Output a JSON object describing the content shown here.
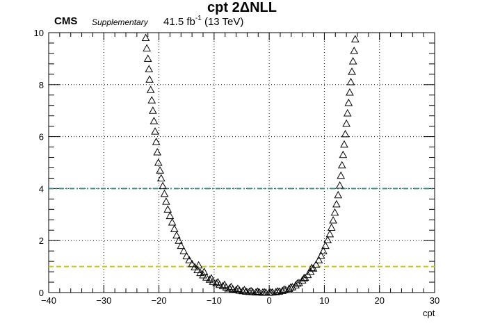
{
  "header": {
    "experiment": "CMS",
    "status": "Supplementary",
    "lumi_value": "41.5 fb",
    "lumi_exponent": "-1",
    "energy": "(13 TeV)"
  },
  "chart_data": {
    "type": "scatter",
    "title": "cpt 2ΔNLL",
    "xlabel": "cpt",
    "ylabel": "",
    "xlim": [
      -40,
      30
    ],
    "ylim": [
      0,
      10
    ],
    "xticks": [
      -40,
      -30,
      -20,
      -10,
      0,
      10,
      20,
      30
    ],
    "yticks": [
      0,
      2,
      4,
      6,
      8,
      10
    ],
    "grid": true,
    "marker": "open-triangle",
    "reference_lines": [
      {
        "y": 4,
        "color": "#2e8b8b",
        "style": "dash-dot"
      },
      {
        "y": 1,
        "color": "#cccc00",
        "style": "dashed"
      }
    ],
    "series": [
      {
        "points": [
          [
            -22.4,
            9.8
          ],
          [
            -22.2,
            9.4
          ],
          [
            -22.0,
            9.0
          ],
          [
            -21.8,
            8.6
          ],
          [
            -21.7,
            8.2
          ],
          [
            -21.5,
            7.8
          ],
          [
            -21.3,
            7.4
          ],
          [
            -21.1,
            7.0
          ],
          [
            -20.9,
            6.6
          ],
          [
            -20.7,
            6.2
          ],
          [
            -20.5,
            5.8
          ],
          [
            -20.3,
            5.4
          ],
          [
            -20.1,
            5.0
          ],
          [
            -19.8,
            4.7
          ],
          [
            -19.6,
            4.4
          ],
          [
            -19.3,
            4.1
          ],
          [
            -19.0,
            3.8
          ],
          [
            -18.7,
            3.5
          ],
          [
            -18.4,
            3.2
          ],
          [
            -18.0,
            2.95
          ],
          [
            -17.6,
            2.7
          ],
          [
            -17.2,
            2.45
          ],
          [
            -16.8,
            2.2
          ],
          [
            -16.4,
            2.0
          ],
          [
            -16.0,
            1.8
          ],
          [
            -15.5,
            1.6
          ],
          [
            -15.0,
            1.4
          ],
          [
            -14.5,
            1.25
          ],
          [
            -14.0,
            1.1
          ],
          [
            -13.5,
            0.98
          ],
          [
            -13.0,
            0.87
          ],
          [
            -12.5,
            0.76
          ],
          [
            -12.0,
            0.67
          ],
          [
            -11.4,
            0.58
          ],
          [
            -10.8,
            0.5
          ],
          [
            -10.2,
            0.42
          ],
          [
            -9.6,
            0.36
          ],
          [
            -9.0,
            0.3
          ],
          [
            -8.4,
            0.25
          ],
          [
            -7.8,
            0.2
          ],
          [
            -7.2,
            0.16
          ],
          [
            -6.6,
            0.13
          ],
          [
            -6.0,
            0.1
          ],
          [
            -5.4,
            0.08
          ],
          [
            -4.8,
            0.06
          ],
          [
            -4.2,
            0.04
          ],
          [
            -3.6,
            0.03
          ],
          [
            -3.0,
            0.02
          ],
          [
            -2.4,
            0.01
          ],
          [
            -1.8,
            0.01
          ],
          [
            -1.2,
            0.0
          ],
          [
            -0.6,
            0.0
          ],
          [
            0.0,
            0.0
          ],
          [
            0.6,
            0.01
          ],
          [
            1.2,
            0.02
          ],
          [
            1.8,
            0.04
          ],
          [
            2.4,
            0.07
          ],
          [
            3.0,
            0.1
          ],
          [
            3.6,
            0.15
          ],
          [
            4.2,
            0.21
          ],
          [
            4.8,
            0.28
          ],
          [
            5.4,
            0.37
          ],
          [
            6.0,
            0.47
          ],
          [
            6.5,
            0.57
          ],
          [
            7.0,
            0.68
          ],
          [
            7.5,
            0.8
          ],
          [
            8.0,
            0.93
          ],
          [
            8.5,
            1.08
          ],
          [
            9.0,
            1.25
          ],
          [
            9.4,
            1.42
          ],
          [
            9.8,
            1.6
          ],
          [
            10.2,
            1.8
          ],
          [
            10.6,
            2.02
          ],
          [
            11.0,
            2.25
          ],
          [
            11.3,
            2.5
          ],
          [
            11.6,
            2.78
          ],
          [
            11.9,
            3.08
          ],
          [
            12.2,
            3.4
          ],
          [
            12.5,
            3.75
          ],
          [
            12.8,
            4.12
          ],
          [
            13.0,
            4.5
          ],
          [
            13.2,
            4.9
          ],
          [
            13.4,
            5.3
          ],
          [
            13.6,
            5.7
          ],
          [
            13.8,
            6.1
          ],
          [
            14.0,
            6.5
          ],
          [
            14.2,
            6.9
          ],
          [
            14.4,
            7.3
          ],
          [
            14.6,
            7.7
          ],
          [
            14.8,
            8.1
          ],
          [
            15.0,
            8.5
          ],
          [
            15.2,
            8.9
          ],
          [
            15.4,
            9.3
          ],
          [
            15.6,
            9.75
          ],
          [
            -12.8,
            1.05
          ],
          [
            -11.8,
            0.8
          ],
          [
            -10.5,
            0.55
          ],
          [
            -9.3,
            0.4
          ],
          [
            -8.1,
            0.3
          ],
          [
            -6.9,
            0.22
          ],
          [
            -5.7,
            0.15
          ],
          [
            -4.5,
            0.1
          ],
          [
            -3.3,
            0.06
          ],
          [
            -2.1,
            0.04
          ],
          [
            -0.9,
            0.02
          ],
          [
            0.3,
            0.01
          ],
          [
            1.5,
            0.05
          ],
          [
            2.7,
            0.12
          ],
          [
            3.9,
            0.2
          ],
          [
            5.1,
            0.35
          ],
          [
            6.3,
            0.55
          ],
          [
            7.7,
            0.95
          ]
        ]
      }
    ]
  }
}
